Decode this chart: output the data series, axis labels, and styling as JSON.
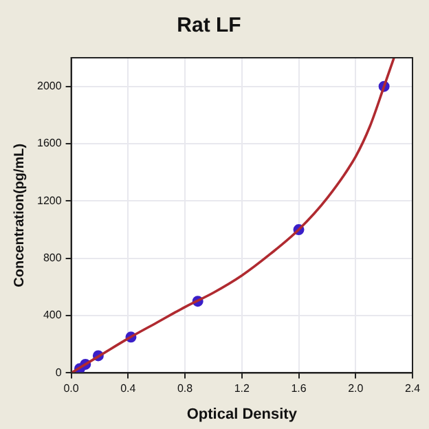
{
  "chart_data": {
    "type": "scatter",
    "title": "Rat LF",
    "xlabel": "Optical Density",
    "ylabel": "Concentration(pg/mL)",
    "xlim": [
      0,
      2.4
    ],
    "xticks": [
      {
        "value": 0,
        "label": "0.0"
      },
      0.4,
      0.8,
      1.2,
      1.6,
      {
        "value": 2,
        "label": "2.0"
      },
      2.4
    ],
    "ylim": [
      0,
      2200
    ],
    "yticks": [
      0,
      400,
      800,
      1200,
      1600,
      2000
    ],
    "grid": true,
    "marker": "circle",
    "series": [
      {
        "type": "line",
        "color": "#b02a30",
        "marker": "none",
        "x": [
          0,
          0.2,
          0.4,
          0.6,
          0.8,
          1.0,
          1.2,
          1.4,
          1.6,
          1.8,
          2.0,
          2.1,
          2.2,
          2.27
        ],
        "values": [
          0,
          120,
          240,
          350,
          460,
          560,
          680,
          830,
          1000,
          1220,
          1510,
          1720,
          2000,
          2200
        ]
      },
      {
        "type": "scatter",
        "color": "#3a1fc8",
        "x": [
          0.06,
          0.1,
          0.19,
          0.42,
          0.89,
          1.6,
          2.2
        ],
        "values": [
          30,
          60,
          120,
          250,
          500,
          1000,
          2000
        ]
      }
    ]
  }
}
